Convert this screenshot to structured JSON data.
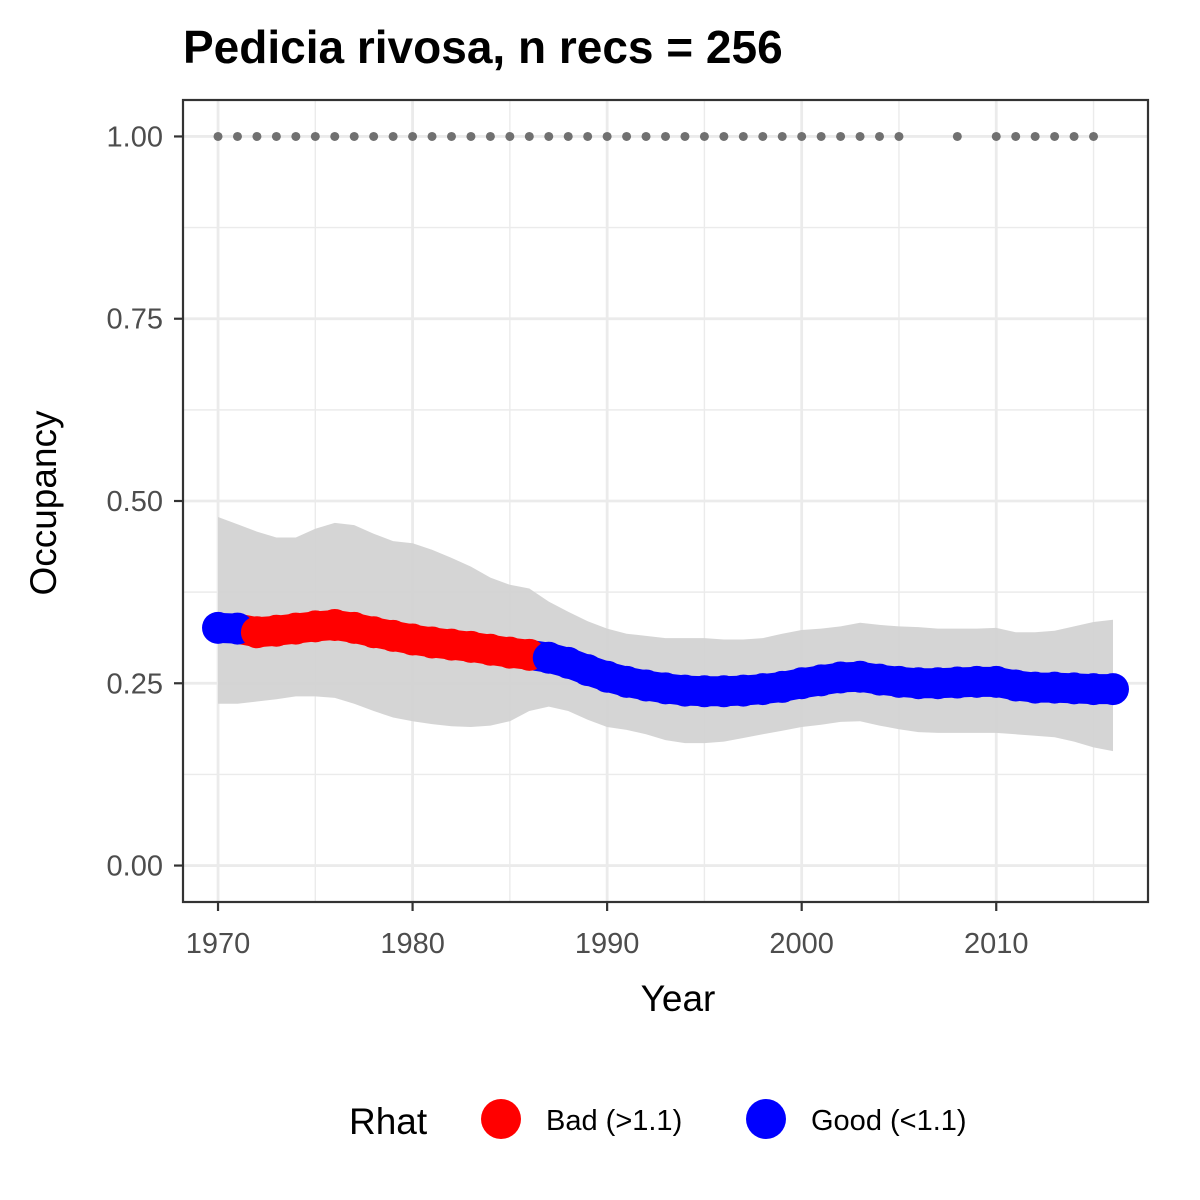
{
  "chart_data": {
    "type": "line",
    "title": "Pedicia rivosa, n recs = 256",
    "xlabel": "Year",
    "ylabel": "Occupancy",
    "xlim": [
      1968.2,
      2017.8
    ],
    "ylim": [
      -0.05,
      1.05
    ],
    "x_ticks": [
      1970,
      1980,
      1990,
      2000,
      2010
    ],
    "x_tick_labels": [
      "1970",
      "1980",
      "1990",
      "2000",
      "2010"
    ],
    "x_minor_ticks": [
      1975,
      1985,
      1995,
      2005,
      2015
    ],
    "y_ticks": [
      0,
      0.25,
      0.5,
      0.75,
      1.0
    ],
    "y_tick_labels": [
      "0.00",
      "0.25",
      "0.50",
      "0.75",
      "1.00"
    ],
    "y_minor_ticks": [
      0.125,
      0.375,
      0.625,
      0.875
    ],
    "grid": true,
    "legend": {
      "title": "Rhat",
      "position": "bottom",
      "entries": [
        {
          "label": "Bad (>1.1)",
          "color": "#ff0000"
        },
        {
          "label": "Good (<1.1)",
          "color": "#0000ff"
        }
      ]
    },
    "colors": {
      "bad": "#ff0000",
      "good": "#0000ff",
      "ribbon": "#d3d3d3",
      "records": "#707070"
    },
    "years": [
      1970,
      1971,
      1972,
      1973,
      1974,
      1975,
      1976,
      1977,
      1978,
      1979,
      1980,
      1981,
      1982,
      1983,
      1984,
      1985,
      1986,
      1987,
      1988,
      1989,
      1990,
      1991,
      1992,
      1993,
      1994,
      1995,
      1996,
      1997,
      1998,
      1999,
      2000,
      2001,
      2002,
      2003,
      2004,
      2005,
      2006,
      2007,
      2008,
      2009,
      2010,
      2011,
      2012,
      2013,
      2014,
      2015,
      2016
    ],
    "occupancy": [
      0.326,
      0.325,
      0.32,
      0.322,
      0.325,
      0.328,
      0.33,
      0.326,
      0.32,
      0.315,
      0.31,
      0.306,
      0.303,
      0.3,
      0.296,
      0.292,
      0.289,
      0.285,
      0.278,
      0.268,
      0.259,
      0.252,
      0.247,
      0.243,
      0.24,
      0.239,
      0.239,
      0.24,
      0.242,
      0.245,
      0.25,
      0.254,
      0.258,
      0.259,
      0.255,
      0.252,
      0.25,
      0.25,
      0.251,
      0.252,
      0.252,
      0.247,
      0.244,
      0.244,
      0.243,
      0.242,
      0.242
    ],
    "rhat_status": [
      "good",
      "good",
      "bad",
      "bad",
      "bad",
      "bad",
      "bad",
      "bad",
      "bad",
      "bad",
      "bad",
      "bad",
      "bad",
      "bad",
      "bad",
      "bad",
      "bad",
      "good",
      "good",
      "good",
      "good",
      "good",
      "good",
      "good",
      "good",
      "good",
      "good",
      "good",
      "good",
      "good",
      "good",
      "good",
      "good",
      "good",
      "good",
      "good",
      "good",
      "good",
      "good",
      "good",
      "good",
      "good",
      "good",
      "good",
      "good",
      "good",
      "good"
    ],
    "lower": [
      0.222,
      0.222,
      0.225,
      0.228,
      0.232,
      0.232,
      0.23,
      0.222,
      0.212,
      0.203,
      0.198,
      0.194,
      0.191,
      0.19,
      0.192,
      0.198,
      0.212,
      0.218,
      0.212,
      0.2,
      0.19,
      0.186,
      0.18,
      0.172,
      0.168,
      0.168,
      0.17,
      0.175,
      0.18,
      0.185,
      0.19,
      0.193,
      0.197,
      0.198,
      0.192,
      0.187,
      0.183,
      0.182,
      0.182,
      0.182,
      0.182,
      0.18,
      0.178,
      0.176,
      0.17,
      0.162,
      0.157
    ],
    "upper": [
      0.478,
      0.468,
      0.458,
      0.45,
      0.45,
      0.462,
      0.47,
      0.467,
      0.455,
      0.445,
      0.442,
      0.433,
      0.422,
      0.41,
      0.395,
      0.385,
      0.38,
      0.362,
      0.348,
      0.335,
      0.325,
      0.318,
      0.315,
      0.312,
      0.312,
      0.312,
      0.31,
      0.31,
      0.312,
      0.318,
      0.323,
      0.325,
      0.328,
      0.333,
      0.33,
      0.328,
      0.327,
      0.325,
      0.325,
      0.325,
      0.326,
      0.32,
      0.32,
      0.322,
      0.328,
      0.334,
      0.337
    ],
    "record_years": [
      1970,
      1971,
      1972,
      1973,
      1974,
      1975,
      1976,
      1977,
      1978,
      1979,
      1980,
      1981,
      1982,
      1983,
      1984,
      1985,
      1986,
      1987,
      1988,
      1989,
      1990,
      1991,
      1992,
      1993,
      1994,
      1995,
      1996,
      1997,
      1998,
      1999,
      2000,
      2001,
      2002,
      2003,
      2004,
      2005,
      2008,
      2010,
      2011,
      2012,
      2013,
      2014,
      2015
    ],
    "record_value": 1.0
  }
}
